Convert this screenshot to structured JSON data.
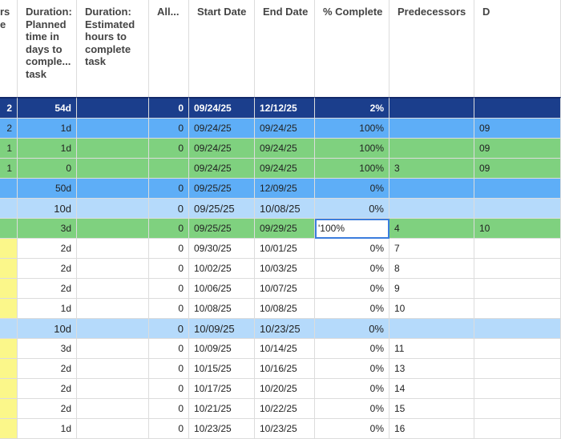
{
  "columns": [
    "rs\ne",
    "Duration:\nPlanned\ntime in\ndays to\ncomple...\ntask",
    "Duration:\nEstimated\nhours to\ncomplete\ntask",
    "All...",
    "Start Date",
    "End Date",
    "% Complete",
    "Predecessors",
    "D"
  ],
  "rows": [
    {
      "color": "#1b3e8c",
      "cells": [
        "2",
        "54d",
        null,
        "0",
        "09/24/25",
        "12/12/25",
        "2%",
        null,
        null
      ]
    },
    {
      "color": "#5eaef7",
      "cells": [
        "2",
        "1d",
        null,
        "0",
        "09/24/25",
        "09/24/25",
        "100%",
        null,
        "09"
      ]
    },
    {
      "color": "#7fd17f",
      "cells": [
        "1",
        "1d",
        null,
        "0",
        "09/24/25",
        "09/24/25",
        "100%",
        null,
        "09"
      ]
    },
    {
      "color": "#7fd17f",
      "cells": [
        "1",
        "0",
        null,
        null,
        "09/24/25",
        "09/24/25",
        "100%",
        "3",
        "09"
      ]
    },
    {
      "color": "#5eaef7",
      "cells": [
        null,
        "50d",
        null,
        "0",
        "09/25/25",
        "12/09/25",
        "0%",
        null,
        null
      ]
    },
    {
      "color": "#b5dafb",
      "cells": [
        null,
        "10d",
        null,
        "0",
        "09/25/25",
        "10/08/25",
        "0%",
        null,
        null
      ]
    },
    {
      "color": "#7fd17f",
      "cells": [
        null,
        "3d",
        null,
        "0",
        "09/25/25",
        "09/29/25",
        "'100%",
        "4",
        "10"
      ]
    },
    {
      "color": "#ffffff",
      "marker": "#fbf78a",
      "cells": [
        null,
        "2d",
        null,
        "0",
        "09/30/25",
        "10/01/25",
        "0%",
        "7",
        null
      ]
    },
    {
      "color": "#ffffff",
      "marker": "#fbf78a",
      "cells": [
        null,
        "2d",
        null,
        "0",
        "10/02/25",
        "10/03/25",
        "0%",
        "8",
        null
      ]
    },
    {
      "color": "#ffffff",
      "marker": "#fbf78a",
      "cells": [
        null,
        "2d",
        null,
        "0",
        "10/06/25",
        "10/07/25",
        "0%",
        "9",
        null
      ]
    },
    {
      "color": "#ffffff",
      "marker": "#fbf78a",
      "cells": [
        null,
        "1d",
        null,
        "0",
        "10/08/25",
        "10/08/25",
        "0%",
        "10",
        null
      ]
    },
    {
      "color": "#b5dafb",
      "cells": [
        null,
        "10d",
        null,
        "0",
        "10/09/25",
        "10/23/25",
        "0%",
        null,
        null
      ]
    },
    {
      "color": "#ffffff",
      "marker": "#fbf78a",
      "cells": [
        null,
        "3d",
        null,
        "0",
        "10/09/25",
        "10/14/25",
        "0%",
        "11",
        null
      ]
    },
    {
      "color": "#ffffff",
      "marker": "#fbf78a",
      "cells": [
        null,
        "2d",
        null,
        "0",
        "10/15/25",
        "10/16/25",
        "0%",
        "13",
        null
      ]
    },
    {
      "color": "#ffffff",
      "marker": "#fbf78a",
      "cells": [
        null,
        "2d",
        null,
        "0",
        "10/17/25",
        "10/20/25",
        "0%",
        "14",
        null
      ]
    },
    {
      "color": "#ffffff",
      "marker": "#fbf78a",
      "cells": [
        null,
        "2d",
        null,
        "0",
        "10/21/25",
        "10/22/25",
        "0%",
        "15",
        null
      ]
    },
    {
      "color": "#ffffff",
      "marker": "#fbf78a",
      "cells": [
        null,
        "1d",
        null,
        "0",
        "10/23/25",
        "10/23/25",
        "0%",
        "16",
        null
      ]
    }
  ]
}
